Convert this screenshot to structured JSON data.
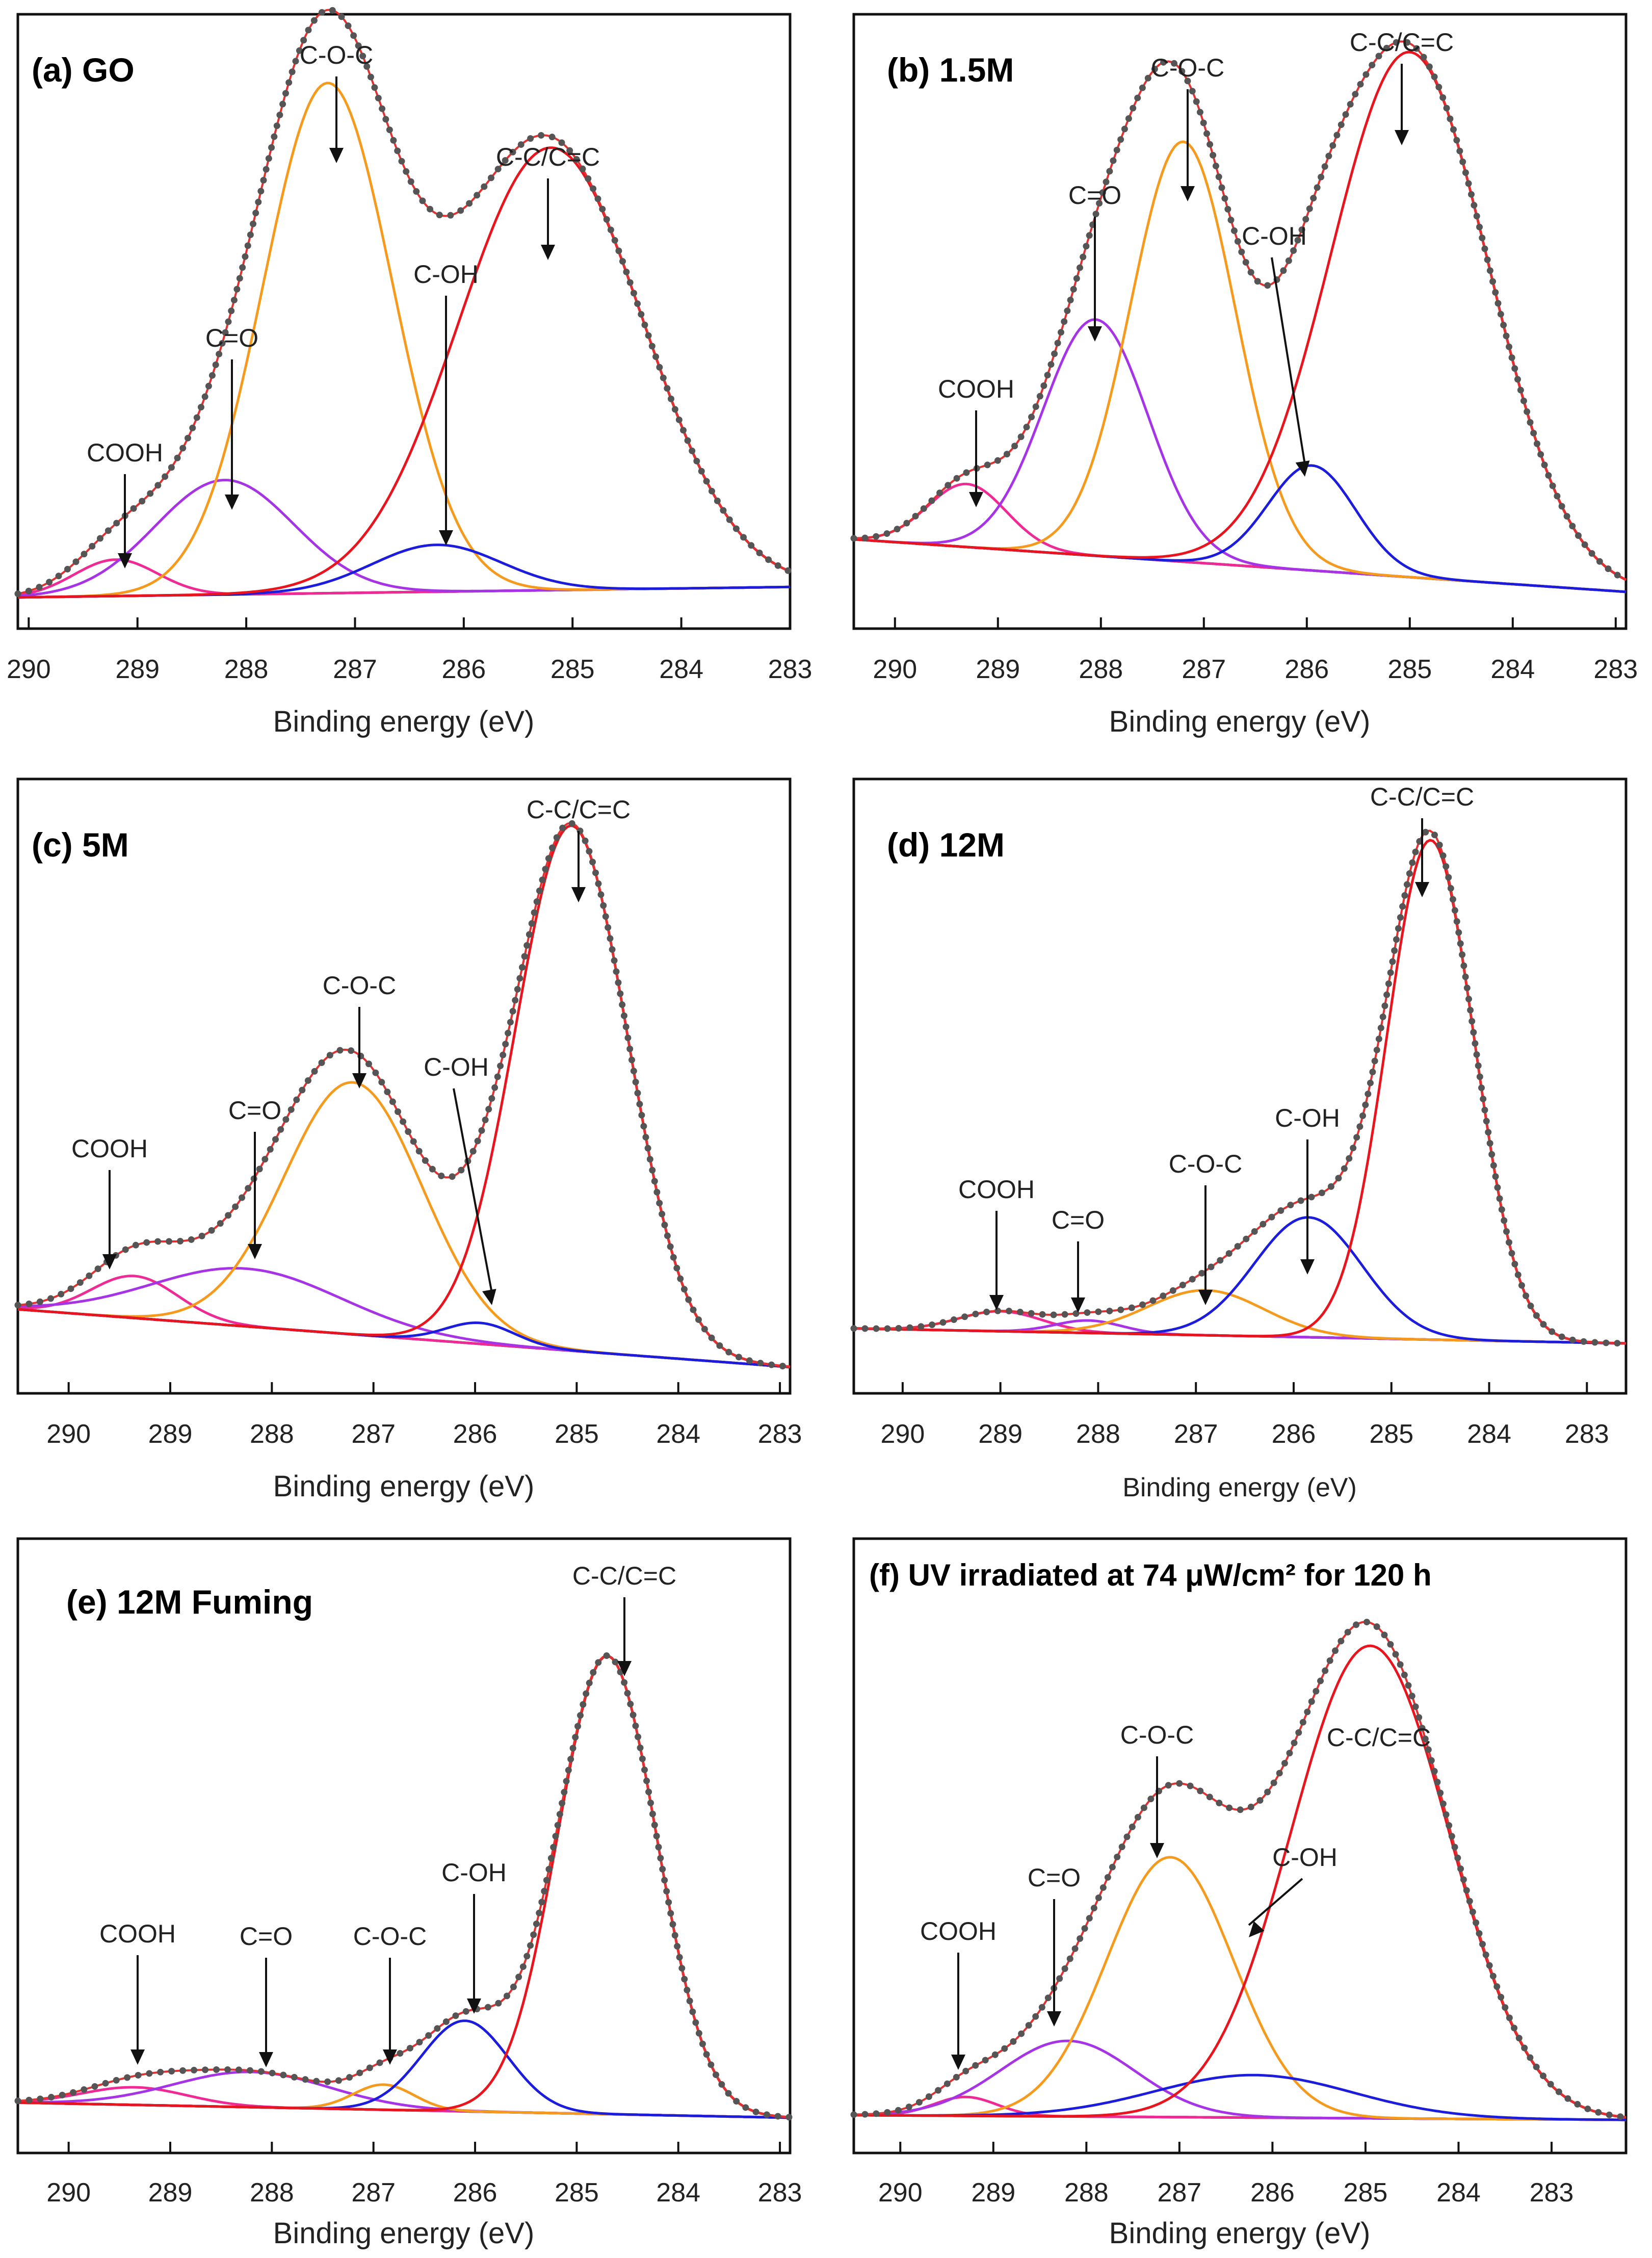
{
  "figure": {
    "x_axis_label": "Binding energy (eV)",
    "colors": {
      "envelope": "#555555",
      "fit": "#e53030",
      "background": "#111111",
      "C-C/C=C": "#e8141e",
      "C-OH": "#1c1cdc",
      "C-O-C": "#f59a1c",
      "C=O": "#a634e6",
      "COOH": "#ef2a95"
    }
  },
  "chart_data": [
    {
      "type": "line",
      "panel": "a",
      "title": "(a) GO",
      "xlabel": "Binding energy (eV)",
      "ylabel": "",
      "xlim": [
        290.1,
        283.0
      ],
      "ylim": [
        -0.06,
        1.12
      ],
      "xticks": [
        290,
        289,
        288,
        287,
        286,
        285,
        284,
        283
      ],
      "baseline": {
        "left": 0.0,
        "right": 0.02
      },
      "peaks": [
        {
          "name": "COOH",
          "label": "COOH",
          "center": 289.2,
          "height": 0.07,
          "fwhm": 0.9
        },
        {
          "name": "C=O",
          "label": "C=O",
          "center": 288.2,
          "height": 0.22,
          "fwhm": 1.5
        },
        {
          "name": "C-O-C",
          "label": "C-O-C",
          "center": 287.25,
          "height": 0.98,
          "fwhm": 1.4
        },
        {
          "name": "C-OH",
          "label": "C-OH",
          "center": 286.25,
          "height": 0.09,
          "fwhm": 1.4
        },
        {
          "name": "C-C/C=C",
          "label": "C-C/C=C",
          "center": 285.2,
          "height": 0.85,
          "fwhm": 2.0
        }
      ]
    },
    {
      "type": "line",
      "panel": "b",
      "title": "(b) 1.5M",
      "xlabel": "Binding energy (eV)",
      "ylabel": "",
      "xlim": [
        290.4,
        282.9
      ],
      "ylim": [
        -0.07,
        1.1
      ],
      "xticks": [
        290,
        289,
        288,
        287,
        286,
        285,
        284,
        283
      ],
      "baseline": {
        "left": 0.1,
        "right": 0.0
      },
      "peaks": [
        {
          "name": "COOH",
          "label": "COOH",
          "center": 289.3,
          "height": 0.12,
          "fwhm": 0.9
        },
        {
          "name": "C=O",
          "label": "C=O",
          "center": 288.05,
          "height": 0.45,
          "fwhm": 1.2
        },
        {
          "name": "C-O-C",
          "label": "C-O-C",
          "center": 287.2,
          "height": 0.8,
          "fwhm": 1.2
        },
        {
          "name": "C-OH",
          "label": "C-OH",
          "center": 285.95,
          "height": 0.2,
          "fwhm": 1.0
        },
        {
          "name": "C-C/C=C",
          "label": "C-C/C=C",
          "center": 285.0,
          "height": 1.0,
          "fwhm": 1.8
        }
      ]
    },
    {
      "type": "line",
      "panel": "c",
      "title": "(c) 5M",
      "xlabel": "Binding energy (eV)",
      "ylabel": "",
      "xlim": [
        290.5,
        282.9
      ],
      "ylim": [
        -0.05,
        1.12
      ],
      "xticks": [
        290,
        289,
        288,
        287,
        286,
        285,
        284,
        283
      ],
      "baseline": {
        "left": 0.11,
        "right": 0.0
      },
      "peaks": [
        {
          "name": "COOH",
          "label": "COOH",
          "center": 289.35,
          "height": 0.08,
          "fwhm": 1.0
        },
        {
          "name": "C=O",
          "label": "C=O",
          "center": 288.25,
          "height": 0.11,
          "fwhm": 2.2
        },
        {
          "name": "C-O-C",
          "label": "C-O-C",
          "center": 287.2,
          "height": 0.48,
          "fwhm": 1.6
        },
        {
          "name": "C-OH",
          "label": "C-OH",
          "center": 285.95,
          "height": 0.04,
          "fwhm": 0.8
        },
        {
          "name": "C-C/C=C",
          "label": "C-C/C=C",
          "center": 285.05,
          "height": 1.0,
          "fwhm": 1.3
        }
      ]
    },
    {
      "type": "line",
      "panel": "d",
      "title": "(d) 12M",
      "xlabel": "Binding energy (eV)",
      "ylabel": "",
      "xlim": [
        290.5,
        282.6
      ],
      "ylim": [
        -0.13,
        1.1
      ],
      "xticks": [
        290,
        289,
        288,
        287,
        286,
        285,
        284,
        283
      ],
      "baseline": {
        "left": 0.0,
        "right": -0.03
      },
      "peaks": [
        {
          "name": "COOH",
          "label": "COOH",
          "center": 289.0,
          "height": 0.04,
          "fwhm": 1.0
        },
        {
          "name": "C=O",
          "label": "C=O",
          "center": 288.1,
          "height": 0.025,
          "fwhm": 0.8
        },
        {
          "name": "C-O-C",
          "label": "C-O-C",
          "center": 286.9,
          "height": 0.09,
          "fwhm": 1.4
        },
        {
          "name": "C-OH",
          "label": "C-OH",
          "center": 285.85,
          "height": 0.24,
          "fwhm": 1.3
        },
        {
          "name": "C-C/C=C",
          "label": "C-C/C=C",
          "center": 284.6,
          "height": 1.0,
          "fwhm": 1.05
        }
      ]
    },
    {
      "type": "line",
      "panel": "e",
      "title": "(e) 12M Fuming",
      "xlabel": "Binding energy (eV)",
      "ylabel": "",
      "xlim": [
        290.5,
        282.9
      ],
      "ylim": [
        -0.1,
        1.12
      ],
      "xticks": [
        290,
        289,
        288,
        287,
        286,
        285,
        284,
        283
      ],
      "baseline": {
        "left": 0.0,
        "right": -0.03
      },
      "peaks": [
        {
          "name": "COOH",
          "label": "COOH",
          "center": 289.35,
          "height": 0.035,
          "fwhm": 1.2
        },
        {
          "name": "C=O",
          "label": "C=O",
          "center": 288.2,
          "height": 0.07,
          "fwhm": 1.8
        },
        {
          "name": "C-O-C",
          "label": "C-O-C",
          "center": 286.9,
          "height": 0.05,
          "fwhm": 0.7
        },
        {
          "name": "C-OH",
          "label": "C-OH",
          "center": 286.1,
          "height": 0.18,
          "fwhm": 1.0
        },
        {
          "name": "C-C/C=C",
          "label": "C-C/C=C",
          "center": 284.7,
          "height": 0.91,
          "fwhm": 1.15
        }
      ]
    },
    {
      "type": "line",
      "panel": "f",
      "title": "(f) UV irradiated at 74 μW/cm² for 120 h",
      "xlabel": "Binding energy (eV)",
      "ylabel": "",
      "xlim": [
        290.5,
        282.2
      ],
      "ylim": [
        -0.08,
        1.22
      ],
      "xticks": [
        290,
        289,
        288,
        287,
        286,
        285,
        284,
        283
      ],
      "baseline": {
        "left": 0.0,
        "right": -0.01
      },
      "peaks": [
        {
          "name": "COOH",
          "label": "COOH",
          "center": 289.3,
          "height": 0.04,
          "fwhm": 0.8
        },
        {
          "name": "C=O",
          "label": "C=O",
          "center": 288.2,
          "height": 0.16,
          "fwhm": 1.7
        },
        {
          "name": "C-O-C",
          "label": "C-O-C",
          "center": 287.1,
          "height": 0.55,
          "fwhm": 1.6
        },
        {
          "name": "C-OH",
          "label": "C-OH",
          "center": 286.2,
          "height": 0.09,
          "fwhm": 2.5
        },
        {
          "name": "C-C/C=C",
          "label": "C-C/C=C",
          "center": 284.95,
          "height": 1.0,
          "fwhm": 2.0
        }
      ]
    }
  ]
}
